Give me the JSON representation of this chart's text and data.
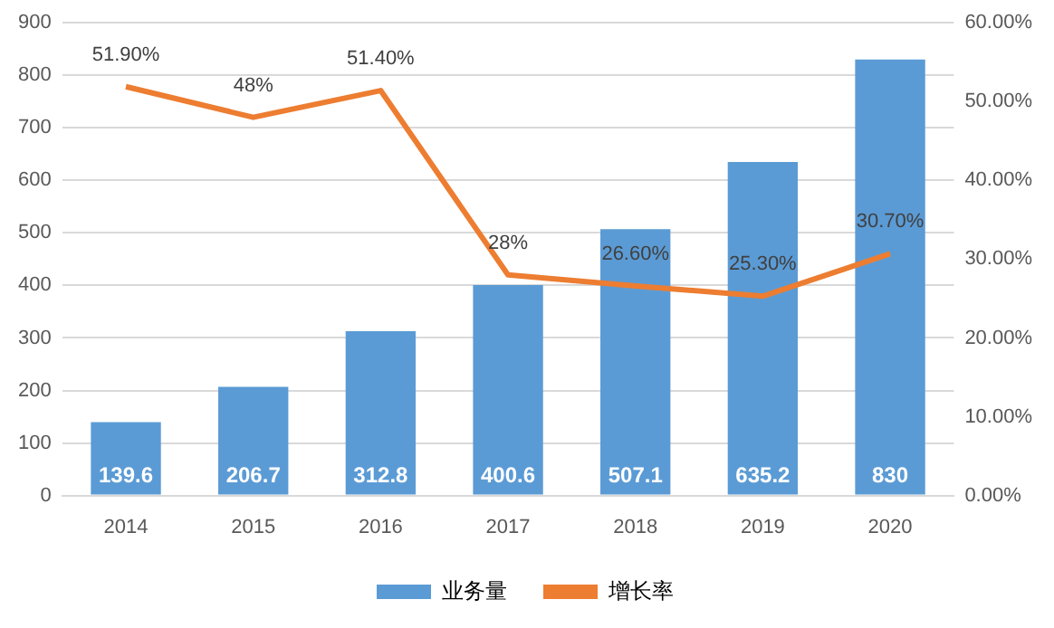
{
  "chart_data": {
    "type": "bar",
    "categories": [
      "2014",
      "2015",
      "2016",
      "2017",
      "2018",
      "2019",
      "2020"
    ],
    "series": [
      {
        "name": "业务量",
        "color": "#5b9bd5",
        "values": [
          139.6,
          206.7,
          312.8,
          400.6,
          507.1,
          635.2,
          830
        ],
        "value_labels": [
          "139.6",
          "206.7",
          "312.8",
          "400.6",
          "507.1",
          "635.2",
          "830"
        ]
      },
      {
        "name": "增长率",
        "type": "line",
        "axis": "y2",
        "color": "#ed7d31",
        "values": [
          51.9,
          48,
          51.4,
          28,
          26.6,
          25.3,
          30.7
        ],
        "value_labels": [
          "51.90%",
          "48%",
          "51.40%",
          "28%",
          "26.60%",
          "25.30%",
          "30.70%"
        ]
      }
    ],
    "ylim": [
      0,
      900
    ],
    "yticks": [
      0,
      100,
      200,
      300,
      400,
      500,
      600,
      700,
      800,
      900
    ],
    "y2lim": [
      0,
      60
    ],
    "y2ticks": [
      {
        "value": 0,
        "label": "0.00%"
      },
      {
        "value": 10,
        "label": "10.00%"
      },
      {
        "value": 20,
        "label": "20.00%"
      },
      {
        "value": 30,
        "label": "30.00%"
      },
      {
        "value": 40,
        "label": "40.00%"
      },
      {
        "value": 50,
        "label": "50.00%"
      },
      {
        "value": 60,
        "label": "60.00%"
      }
    ],
    "grid": "y",
    "legend": "bottom",
    "marker": "none",
    "line_style": "solid"
  }
}
